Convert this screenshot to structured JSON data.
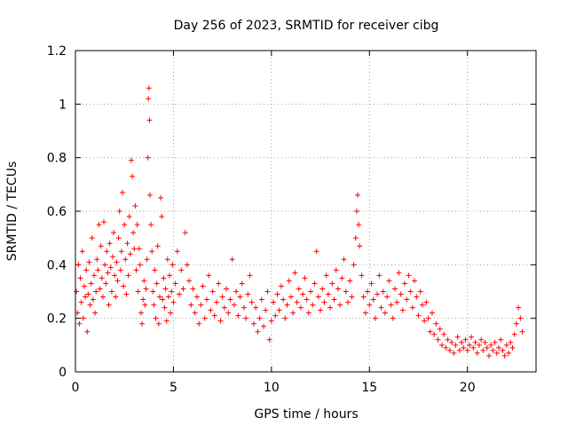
{
  "chart_data": {
    "type": "scatter",
    "title": "Day 256 of 2023, SRMTID for receiver cibg",
    "xlabel": "GPS time / hours",
    "ylabel": "SRMTID / TECUs",
    "xlim": [
      0,
      23.5
    ],
    "ylim": [
      0,
      1.2
    ],
    "x_ticks": [
      0,
      5,
      10,
      15,
      20
    ],
    "x_tick_labels": [
      "0",
      "5",
      "10",
      "15",
      "20"
    ],
    "y_ticks": [
      0,
      0.2,
      0.4,
      0.6,
      0.8,
      1.0,
      1.2
    ],
    "y_tick_labels": [
      "0",
      "0.2",
      "0.4",
      "0.6",
      "0.8",
      "1",
      "1.2"
    ],
    "grid": true,
    "marker": "plus",
    "color": "#ff0000",
    "series": [
      {
        "name": "SRMTID",
        "points": [
          [
            0.05,
            0.3
          ],
          [
            0.1,
            0.22
          ],
          [
            0.15,
            0.4
          ],
          [
            0.2,
            0.18
          ],
          [
            0.25,
            0.35
          ],
          [
            0.3,
            0.26
          ],
          [
            0.35,
            0.45
          ],
          [
            0.4,
            0.2
          ],
          [
            0.45,
            0.32
          ],
          [
            0.5,
            0.28
          ],
          [
            0.55,
            0.38
          ],
          [
            0.6,
            0.15
          ],
          [
            0.65,
            0.29
          ],
          [
            0.7,
            0.41
          ],
          [
            0.75,
            0.25
          ],
          [
            0.8,
            0.33
          ],
          [
            0.85,
            0.5
          ],
          [
            0.9,
            0.27
          ],
          [
            0.95,
            0.36
          ],
          [
            1.0,
            0.22
          ],
          [
            1.05,
            0.3
          ],
          [
            1.1,
            0.42
          ],
          [
            1.15,
            0.38
          ],
          [
            1.2,
            0.55
          ],
          [
            1.25,
            0.31
          ],
          [
            1.3,
            0.47
          ],
          [
            1.35,
            0.35
          ],
          [
            1.4,
            0.28
          ],
          [
            1.45,
            0.56
          ],
          [
            1.5,
            0.4
          ],
          [
            1.55,
            0.33
          ],
          [
            1.6,
            0.45
          ],
          [
            1.65,
            0.37
          ],
          [
            1.7,
            0.25
          ],
          [
            1.75,
            0.48
          ],
          [
            1.8,
            0.39
          ],
          [
            1.85,
            0.3
          ],
          [
            1.9,
            0.43
          ],
          [
            1.95,
            0.52
          ],
          [
            2.0,
            0.36
          ],
          [
            2.05,
            0.28
          ],
          [
            2.1,
            0.41
          ],
          [
            2.15,
            0.34
          ],
          [
            2.2,
            0.5
          ],
          [
            2.25,
            0.6
          ],
          [
            2.3,
            0.38
          ],
          [
            2.35,
            0.45
          ],
          [
            2.4,
            0.67
          ],
          [
            2.45,
            0.32
          ],
          [
            2.5,
            0.55
          ],
          [
            2.55,
            0.42
          ],
          [
            2.6,
            0.29
          ],
          [
            2.65,
            0.48
          ],
          [
            2.7,
            0.36
          ],
          [
            2.75,
            0.58
          ],
          [
            2.8,
            0.44
          ],
          [
            2.85,
            0.79
          ],
          [
            2.9,
            0.73
          ],
          [
            2.95,
            0.52
          ],
          [
            3.0,
            0.46
          ],
          [
            3.05,
            0.62
          ],
          [
            3.1,
            0.38
          ],
          [
            3.15,
            0.55
          ],
          [
            3.2,
            0.3
          ],
          [
            3.25,
            0.46
          ],
          [
            3.3,
            0.4
          ],
          [
            3.35,
            0.22
          ],
          [
            3.4,
            0.18
          ],
          [
            3.45,
            0.27
          ],
          [
            3.5,
            0.34
          ],
          [
            3.55,
            0.25
          ],
          [
            3.6,
            0.31
          ],
          [
            3.65,
            0.42
          ],
          [
            3.7,
            0.8
          ],
          [
            3.72,
            1.02
          ],
          [
            3.75,
            1.06
          ],
          [
            3.78,
            0.94
          ],
          [
            3.8,
            0.66
          ],
          [
            3.85,
            0.55
          ],
          [
            3.9,
            0.45
          ],
          [
            3.95,
            0.3
          ],
          [
            4.0,
            0.25
          ],
          [
            4.05,
            0.38
          ],
          [
            4.1,
            0.2
          ],
          [
            4.15,
            0.33
          ],
          [
            4.2,
            0.47
          ],
          [
            4.25,
            0.18
          ],
          [
            4.3,
            0.28
          ],
          [
            4.35,
            0.65
          ],
          [
            4.4,
            0.58
          ],
          [
            4.45,
            0.27
          ],
          [
            4.5,
            0.35
          ],
          [
            4.55,
            0.24
          ],
          [
            4.6,
            0.31
          ],
          [
            4.65,
            0.19
          ],
          [
            4.7,
            0.42
          ],
          [
            4.75,
            0.28
          ],
          [
            4.8,
            0.36
          ],
          [
            4.85,
            0.22
          ],
          [
            4.9,
            0.3
          ],
          [
            4.95,
            0.4
          ],
          [
            5.0,
            0.26
          ],
          [
            5.1,
            0.33
          ],
          [
            5.2,
            0.45
          ],
          [
            5.3,
            0.29
          ],
          [
            5.4,
            0.38
          ],
          [
            5.5,
            0.31
          ],
          [
            5.6,
            0.52
          ],
          [
            5.7,
            0.4
          ],
          [
            5.8,
            0.34
          ],
          [
            5.9,
            0.25
          ],
          [
            6.0,
            0.31
          ],
          [
            6.1,
            0.22
          ],
          [
            6.2,
            0.28
          ],
          [
            6.3,
            0.18
          ],
          [
            6.4,
            0.25
          ],
          [
            6.5,
            0.32
          ],
          [
            6.6,
            0.2
          ],
          [
            6.7,
            0.27
          ],
          [
            6.8,
            0.36
          ],
          [
            6.9,
            0.23
          ],
          [
            7.0,
            0.3
          ],
          [
            7.1,
            0.21
          ],
          [
            7.2,
            0.26
          ],
          [
            7.3,
            0.33
          ],
          [
            7.4,
            0.19
          ],
          [
            7.5,
            0.28
          ],
          [
            7.6,
            0.24
          ],
          [
            7.7,
            0.31
          ],
          [
            7.8,
            0.22
          ],
          [
            7.9,
            0.27
          ],
          [
            8.0,
            0.42
          ],
          [
            8.1,
            0.25
          ],
          [
            8.2,
            0.3
          ],
          [
            8.3,
            0.21
          ],
          [
            8.4,
            0.28
          ],
          [
            8.5,
            0.33
          ],
          [
            8.6,
            0.24
          ],
          [
            8.7,
            0.2
          ],
          [
            8.8,
            0.29
          ],
          [
            8.9,
            0.36
          ],
          [
            9.0,
            0.26
          ],
          [
            9.1,
            0.18
          ],
          [
            9.2,
            0.24
          ],
          [
            9.3,
            0.15
          ],
          [
            9.4,
            0.2
          ],
          [
            9.5,
            0.27
          ],
          [
            9.6,
            0.17
          ],
          [
            9.7,
            0.23
          ],
          [
            9.8,
            0.3
          ],
          [
            9.9,
            0.12
          ],
          [
            10.0,
            0.19
          ],
          [
            10.1,
            0.26
          ],
          [
            10.2,
            0.21
          ],
          [
            10.3,
            0.29
          ],
          [
            10.4,
            0.23
          ],
          [
            10.5,
            0.32
          ],
          [
            10.6,
            0.27
          ],
          [
            10.7,
            0.2
          ],
          [
            10.8,
            0.25
          ],
          [
            10.9,
            0.34
          ],
          [
            11.0,
            0.28
          ],
          [
            11.1,
            0.22
          ],
          [
            11.2,
            0.37
          ],
          [
            11.3,
            0.26
          ],
          [
            11.4,
            0.31
          ],
          [
            11.5,
            0.24
          ],
          [
            11.6,
            0.29
          ],
          [
            11.7,
            0.35
          ],
          [
            11.8,
            0.27
          ],
          [
            11.9,
            0.22
          ],
          [
            12.0,
            0.3
          ],
          [
            12.1,
            0.25
          ],
          [
            12.2,
            0.33
          ],
          [
            12.3,
            0.45
          ],
          [
            12.4,
            0.28
          ],
          [
            12.5,
            0.23
          ],
          [
            12.6,
            0.31
          ],
          [
            12.7,
            0.26
          ],
          [
            12.8,
            0.36
          ],
          [
            12.9,
            0.29
          ],
          [
            13.0,
            0.24
          ],
          [
            13.1,
            0.33
          ],
          [
            13.2,
            0.27
          ],
          [
            13.3,
            0.38
          ],
          [
            13.4,
            0.31
          ],
          [
            13.5,
            0.25
          ],
          [
            13.6,
            0.35
          ],
          [
            13.7,
            0.42
          ],
          [
            13.8,
            0.3
          ],
          [
            13.9,
            0.26
          ],
          [
            14.0,
            0.34
          ],
          [
            14.1,
            0.28
          ],
          [
            14.2,
            0.4
          ],
          [
            14.3,
            0.5
          ],
          [
            14.35,
            0.6
          ],
          [
            14.4,
            0.66
          ],
          [
            14.45,
            0.55
          ],
          [
            14.5,
            0.47
          ],
          [
            14.6,
            0.36
          ],
          [
            14.7,
            0.28
          ],
          [
            14.8,
            0.22
          ],
          [
            14.9,
            0.3
          ],
          [
            15.0,
            0.25
          ],
          [
            15.1,
            0.33
          ],
          [
            15.2,
            0.27
          ],
          [
            15.3,
            0.2
          ],
          [
            15.4,
            0.29
          ],
          [
            15.5,
            0.36
          ],
          [
            15.6,
            0.24
          ],
          [
            15.7,
            0.3
          ],
          [
            15.8,
            0.22
          ],
          [
            15.9,
            0.28
          ],
          [
            16.0,
            0.34
          ],
          [
            16.1,
            0.25
          ],
          [
            16.2,
            0.2
          ],
          [
            16.3,
            0.31
          ],
          [
            16.4,
            0.26
          ],
          [
            16.5,
            0.37
          ],
          [
            16.6,
            0.29
          ],
          [
            16.7,
            0.23
          ],
          [
            16.8,
            0.33
          ],
          [
            16.9,
            0.27
          ],
          [
            17.0,
            0.36
          ],
          [
            17.1,
            0.3
          ],
          [
            17.2,
            0.24
          ],
          [
            17.3,
            0.34
          ],
          [
            17.4,
            0.28
          ],
          [
            17.5,
            0.21
          ],
          [
            17.6,
            0.3
          ],
          [
            17.7,
            0.25
          ],
          [
            17.8,
            0.19
          ],
          [
            17.9,
            0.26
          ],
          [
            18.0,
            0.2
          ],
          [
            18.1,
            0.15
          ],
          [
            18.2,
            0.22
          ],
          [
            18.3,
            0.14
          ],
          [
            18.4,
            0.18
          ],
          [
            18.5,
            0.12
          ],
          [
            18.6,
            0.16
          ],
          [
            18.7,
            0.1
          ],
          [
            18.8,
            0.14
          ],
          [
            18.9,
            0.09
          ],
          [
            19.0,
            0.12
          ],
          [
            19.1,
            0.08
          ],
          [
            19.2,
            0.11
          ],
          [
            19.3,
            0.07
          ],
          [
            19.4,
            0.1
          ],
          [
            19.5,
            0.13
          ],
          [
            19.6,
            0.08
          ],
          [
            19.7,
            0.11
          ],
          [
            19.8,
            0.09
          ],
          [
            19.9,
            0.12
          ],
          [
            20.0,
            0.08
          ],
          [
            20.1,
            0.1
          ],
          [
            20.2,
            0.13
          ],
          [
            20.3,
            0.09
          ],
          [
            20.4,
            0.11
          ],
          [
            20.5,
            0.07
          ],
          [
            20.6,
            0.1
          ],
          [
            20.7,
            0.12
          ],
          [
            20.8,
            0.08
          ],
          [
            20.9,
            0.11
          ],
          [
            21.0,
            0.09
          ],
          [
            21.1,
            0.06
          ],
          [
            21.2,
            0.1
          ],
          [
            21.3,
            0.08
          ],
          [
            21.4,
            0.11
          ],
          [
            21.5,
            0.07
          ],
          [
            21.6,
            0.09
          ],
          [
            21.7,
            0.12
          ],
          [
            21.8,
            0.08
          ],
          [
            21.9,
            0.06
          ],
          [
            22.0,
            0.1
          ],
          [
            22.1,
            0.07
          ],
          [
            22.2,
            0.11
          ],
          [
            22.3,
            0.09
          ],
          [
            22.4,
            0.14
          ],
          [
            22.5,
            0.18
          ],
          [
            22.6,
            0.24
          ],
          [
            22.7,
            0.2
          ],
          [
            22.8,
            0.15
          ]
        ]
      }
    ]
  }
}
